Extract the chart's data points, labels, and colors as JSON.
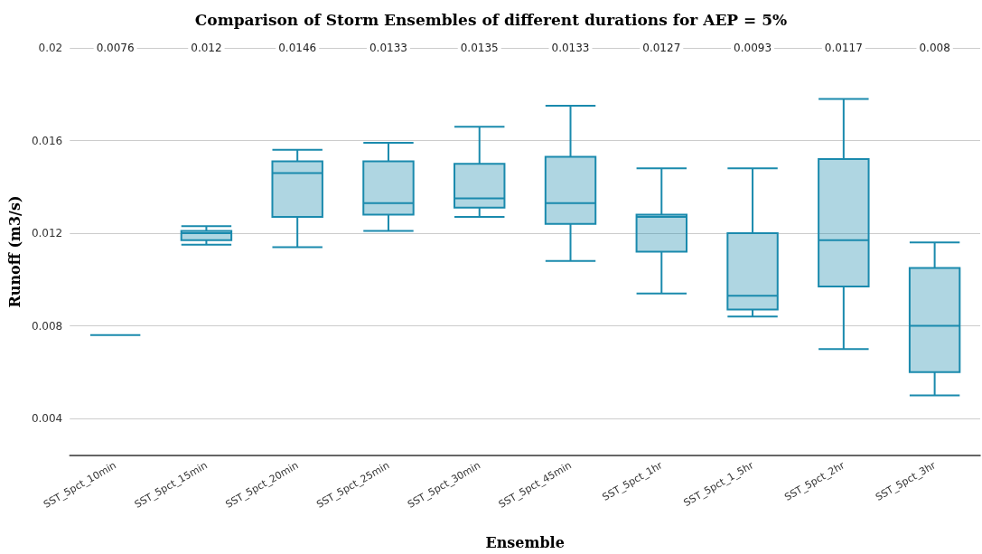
{
  "chart_data": {
    "type": "box",
    "title": "Comparison of Storm Ensembles of different durations for AEP = 5%",
    "xlabel": "Ensemble",
    "ylabel": "Runoff (m3/s)",
    "categories": [
      "SST_5pct_10min",
      "SST_5pct_15min",
      "SST_5pct_20min",
      "SST_5pct_25min",
      "SST_5pct_30min",
      "SST_5pct_45min",
      "SST_5pct_1hr",
      "SST_5pct_1_5hr",
      "SST_5pct_2hr",
      "SST_5pct_3hr"
    ],
    "series": [
      {
        "color": "#1a8aad",
        "boxes": [
          {
            "low": 0.0076,
            "q1": 0.0076,
            "median": 0.0076,
            "q3": 0.0076,
            "high": 0.0076
          },
          {
            "low": 0.0115,
            "q1": 0.0117,
            "median": 0.012,
            "q3": 0.0121,
            "high": 0.0123
          },
          {
            "low": 0.0114,
            "q1": 0.0127,
            "median": 0.0146,
            "q3": 0.0151,
            "high": 0.0156
          },
          {
            "low": 0.0121,
            "q1": 0.0128,
            "median": 0.0133,
            "q3": 0.0151,
            "high": 0.0159
          },
          {
            "low": 0.0127,
            "q1": 0.0131,
            "median": 0.0135,
            "q3": 0.015,
            "high": 0.0166
          },
          {
            "low": 0.0108,
            "q1": 0.0124,
            "median": 0.0133,
            "q3": 0.0153,
            "high": 0.0175
          },
          {
            "low": 0.0094,
            "q1": 0.0112,
            "median": 0.0127,
            "q3": 0.0128,
            "high": 0.0148
          },
          {
            "low": 0.0084,
            "q1": 0.0087,
            "median": 0.0093,
            "q3": 0.012,
            "high": 0.0148
          },
          {
            "low": 0.007,
            "q1": 0.0097,
            "median": 0.0117,
            "q3": 0.0152,
            "high": 0.0178
          },
          {
            "low": 0.005,
            "q1": 0.006,
            "median": 0.008,
            "q3": 0.0105,
            "high": 0.0116
          }
        ]
      }
    ],
    "ylim": [
      0.0024,
      0.02
    ],
    "yticks": [
      0.004,
      0.008,
      0.012,
      0.016,
      0.02
    ],
    "grid": "y",
    "annotations": [
      "0.0076",
      "0.012",
      "0.0146",
      "0.0133",
      "0.0135",
      "0.0133",
      "0.0127",
      "0.0093",
      "0.0117",
      "0.008"
    ]
  }
}
